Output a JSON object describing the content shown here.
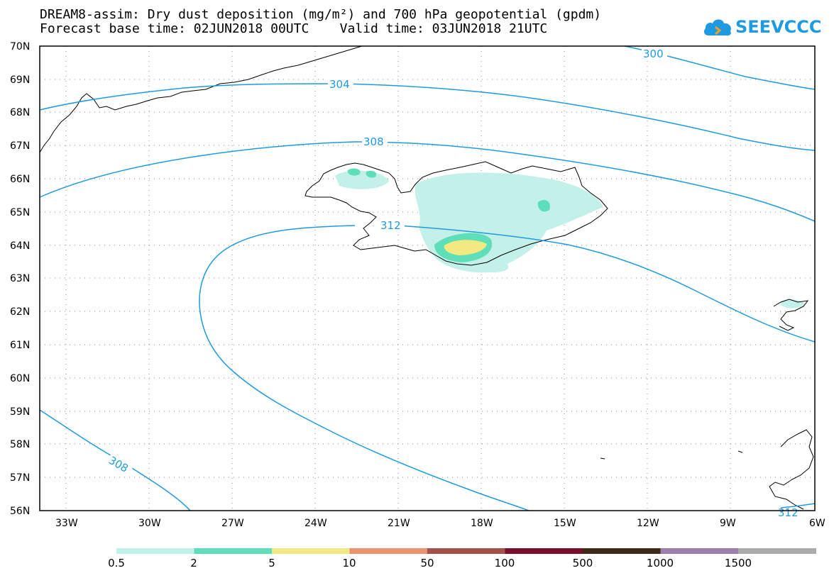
{
  "title_line1": "DREAM8-assim: Dry dust deposition (mg/m²) and 700 hPa geopotential (gpdm)",
  "title_line2": "Forecast base time: 02JUN2018 00UTC    Valid time: 03JUN2018 21UTC",
  "logo_text": "SEEVCCC",
  "map": {
    "lon_range": [
      -34.5,
      -6
    ],
    "lat_range": [
      56,
      70
    ],
    "lat_labels": [
      "70N",
      "69N",
      "68N",
      "67N",
      "66N",
      "65N",
      "64N",
      "63N",
      "62N",
      "61N",
      "60N",
      "59N",
      "58N",
      "57N",
      "56N"
    ],
    "lon_labels": [
      "33W",
      "30W",
      "27W",
      "24W",
      "21W",
      "18W",
      "15W",
      "12W",
      "9W",
      "6W"
    ],
    "contour_color": "#1e9be0",
    "contour_labels": [
      "300",
      "304",
      "308",
      "312",
      "308",
      "312"
    ]
  },
  "legend": {
    "colors": [
      "#c4f0ea",
      "#5fdfb9",
      "#f3e982",
      "#e8936d",
      "#a4514a",
      "#7a0e28",
      "#3f2a1a",
      "#9d7fab",
      "#ababab"
    ],
    "labels": [
      "0.5",
      "2",
      "5",
      "10",
      "50",
      "100",
      "500",
      "1000",
      "1500"
    ]
  }
}
